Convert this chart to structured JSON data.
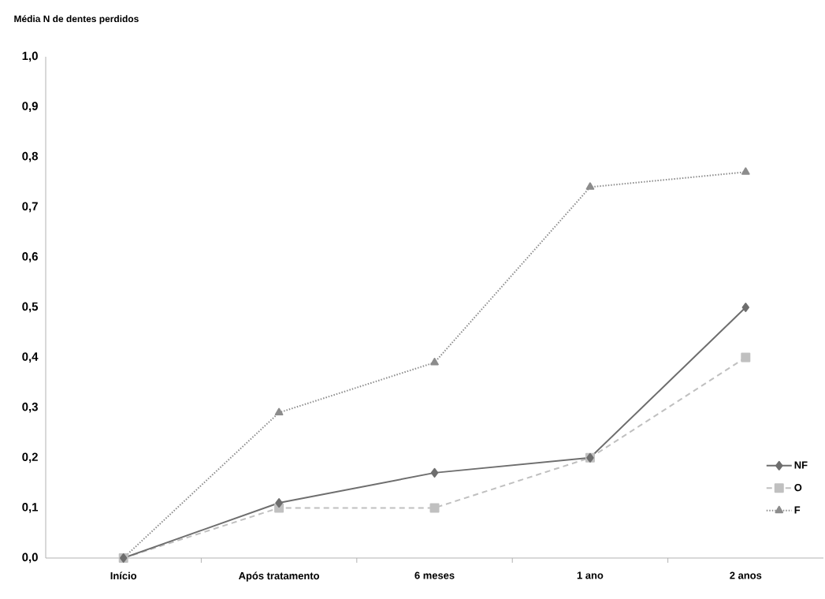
{
  "chart_data": {
    "type": "line",
    "ylabel": "Média N de dentes perdidos",
    "categories": [
      "Início",
      "Após tratamento",
      "6 meses",
      "1 ano",
      "2 anos"
    ],
    "series": [
      {
        "name": "NF",
        "color": "#6e6e6e",
        "marker": "diamond",
        "line_style": "solid",
        "values": [
          0,
          0.11,
          0.17,
          0.2,
          0.5
        ]
      },
      {
        "name": "O",
        "color": "#c0c0c0",
        "marker": "square",
        "line_style": "dashed",
        "values": [
          0,
          0.1,
          0.1,
          0.2,
          0.4
        ]
      },
      {
        "name": "F",
        "color": "#8c8c8c",
        "marker": "triangle",
        "line_style": "dotted",
        "values": [
          0,
          0.29,
          0.39,
          0.74,
          0.77
        ]
      }
    ],
    "ylim": [
      0,
      1
    ],
    "yticks": [
      {
        "value": 0,
        "label": "0,0"
      },
      {
        "value": 0.1,
        "label": "0,1"
      },
      {
        "value": 0.2,
        "label": "0,2"
      },
      {
        "value": 0.3,
        "label": "0,3"
      },
      {
        "value": 0.4,
        "label": "0,4"
      },
      {
        "value": 0.5,
        "label": "0,5"
      },
      {
        "value": 0.6,
        "label": "0,6"
      },
      {
        "value": 0.7,
        "label": "0,7"
      },
      {
        "value": 0.8,
        "label": "0,8"
      },
      {
        "value": 0.9,
        "label": "0,9"
      },
      {
        "value": 1,
        "label": "1,0"
      }
    ],
    "grid": false,
    "legend": "bottom right"
  }
}
